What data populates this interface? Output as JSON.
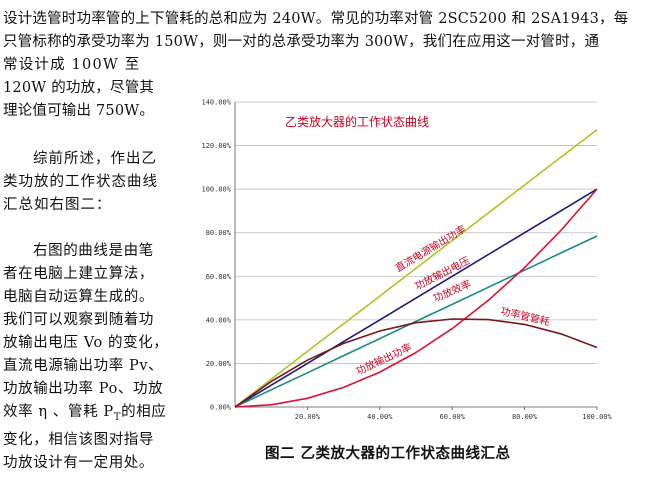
{
  "paragraph1": {
    "lines": [
      "设计选管时功率管的上下管耗的总和应为 240W。常见的功率对管 2SC5200 和 2SA1943，每",
      "只管标称的承受功率为 150W，则一对的总承受功率为 300W，我们在应用这一对管时，通",
      "常设计成  100W  至",
      "120W 的功放，尽管其",
      "理论值可输出 750W。"
    ]
  },
  "paragraph2": {
    "lines": [
      "综前所述，作出乙",
      "类功放的工作状态曲线",
      "汇总如右图二："
    ]
  },
  "paragraph3": {
    "lines": [
      "右图的曲线是由笔",
      "者在电脑上建立算法，",
      "电脑自动运算生成的。",
      "我们可以观察到随着功",
      "放输出电压 Vo 的变化，",
      "直流电源输出功率 Pv、",
      "功放输出功率 Po、功放",
      "效率 η 、管耗 P",
      "变化，相信该图对指导",
      "功放设计有一定用处。"
    ],
    "subscript_T": "T",
    "line8_tail": "的相应"
  },
  "caption": "图二    乙类放大器的工作状态曲线汇总",
  "chart_data": {
    "type": "line",
    "title": "乙类放大器的工作状态曲线",
    "x_ticks": [
      "20.00%",
      "40.00%",
      "60.00%",
      "80.00%",
      "100.00%"
    ],
    "y_ticks": [
      "0.00%",
      "20.00%",
      "40.00%",
      "60.00%",
      "80.00%",
      "100.00%",
      "120.00%",
      "140.00%"
    ],
    "xlim": [
      0,
      1
    ],
    "ylim": [
      0,
      1.4
    ],
    "grid": true,
    "x": [
      0,
      0.1,
      0.2,
      0.3,
      0.4,
      0.5,
      0.6,
      0.7,
      0.8,
      0.9,
      1.0
    ],
    "series": [
      {
        "name": "直流电源输出功率",
        "color": "#a8c820",
        "values": [
          0,
          0.127,
          0.255,
          0.382,
          0.509,
          0.637,
          0.764,
          0.891,
          1.019,
          1.146,
          1.273
        ]
      },
      {
        "name": "功放输出电压",
        "color": "#1a1a80",
        "values": [
          0,
          0.1,
          0.2,
          0.3,
          0.4,
          0.5,
          0.6,
          0.7,
          0.8,
          0.9,
          1.0
        ]
      },
      {
        "name": "功放效率",
        "color": "#1a8a8a",
        "values": [
          0,
          0.079,
          0.157,
          0.236,
          0.314,
          0.393,
          0.471,
          0.55,
          0.628,
          0.707,
          0.785
        ]
      },
      {
        "name": "功放输出功率",
        "color": "#e01030",
        "values": [
          0,
          0.01,
          0.04,
          0.09,
          0.16,
          0.25,
          0.36,
          0.49,
          0.64,
          0.81,
          1.0
        ]
      },
      {
        "name": "功率管管耗",
        "color": "#7a1818",
        "values": [
          0,
          0.117,
          0.215,
          0.292,
          0.349,
          0.387,
          0.404,
          0.401,
          0.379,
          0.336,
          0.273
        ]
      }
    ]
  }
}
